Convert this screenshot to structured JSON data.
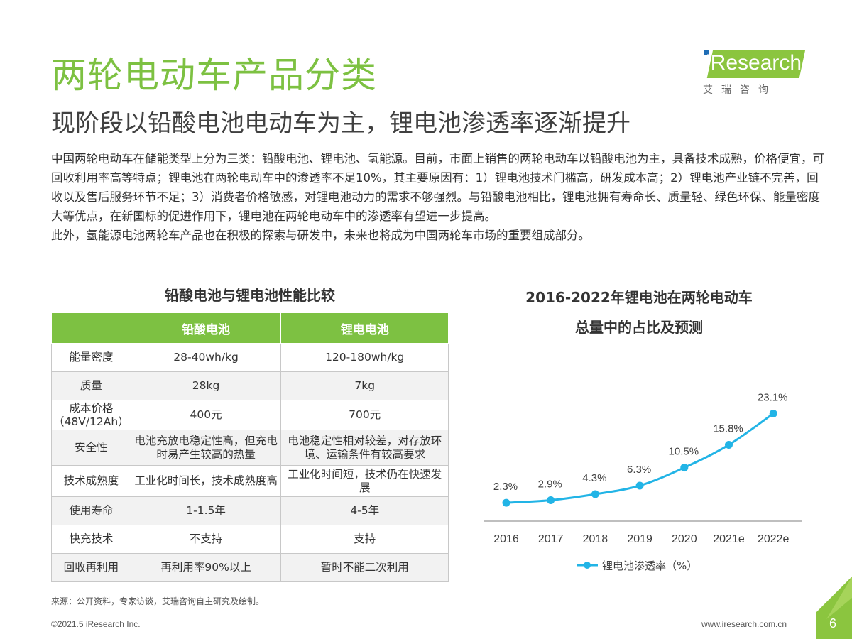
{
  "title": "两轮电动车产品分类",
  "subtitle": "现阶段以铅酸电池电动车为主，锂电池渗透率逐渐提升",
  "intro": [
    "中国两轮电动车在储能类型上分为三类：铅酸电池、锂电池、氢能源。目前，市面上销售的两轮电动车以铅酸电池为主，具备技术成熟，价格便宜，可回收利用率高等特点；锂电池在两轮电动车中的渗透率不足10%，其主要原因有：1）锂电池技术门槛高，研发成本高；2）锂电池产业链不完善，回收以及售后服务环节不足；3）消费者价格敏感，对锂电池动力的需求不够强烈。与铅酸电池相比，锂电池拥有寿命长、质量轻、绿色环保、能量密度大等优点，在新国标的促进作用下，锂电池在两轮电动车中的渗透率有望进一步提高。",
    "此外，氢能源电池两轮车产品也在积极的探索与研发中，未来也将成为中国两轮车市场的重要组成部分。"
  ],
  "logo": {
    "word": "iResearch",
    "cn": "艾瑞咨询",
    "color": "#8bc53f"
  },
  "table": {
    "title": "铅酸电池与锂电池性能比较",
    "headers": [
      "",
      "铅酸电池",
      "锂电电池"
    ],
    "rows": [
      [
        "能量密度",
        "28-40wh/kg",
        "120-180wh/kg"
      ],
      [
        "质量",
        "28kg",
        "7kg"
      ],
      [
        "成本价格（48V/12Ah）",
        "400元",
        "700元"
      ],
      [
        "安全性",
        "电池充放电稳定性高，但充电时易产生较高的热量",
        "电池稳定性相对较差，对存放环境、运输条件有较高要求"
      ],
      [
        "技术成熟度",
        "工业化时间长，技术成熟度高",
        "工业化时间短，技术仍在快速发展"
      ],
      [
        "使用寿命",
        "1-1.5年",
        "4-5年"
      ],
      [
        "快充技术",
        "不支持",
        "支持"
      ],
      [
        "回收再利用",
        "再利用率90%以上",
        "暂时不能二次利用"
      ]
    ]
  },
  "chart_data": {
    "type": "line",
    "title_line1": "2016-2022年锂电池在两轮电动车",
    "title_line2": "总量中的占比及预测",
    "categories": [
      "2016",
      "2017",
      "2018",
      "2019",
      "2020",
      "2021e",
      "2022e"
    ],
    "series": [
      {
        "name": "锂电池渗透率（%）",
        "values": [
          2.3,
          2.9,
          4.3,
          6.3,
          10.5,
          15.8,
          23.1
        ],
        "color": "#22b4e6"
      }
    ],
    "data_labels": [
      "2.3%",
      "2.9%",
      "4.3%",
      "6.3%",
      "10.5%",
      "15.8%",
      "23.1%"
    ],
    "ylim": [
      0,
      24
    ],
    "grid": false,
    "legend": "bottom"
  },
  "source": "来源：公开资料，专家访谈，艾瑞咨询自主研究及绘制。",
  "footer": {
    "copyright": "©2021.5 iResearch Inc.",
    "url": "www.iresearch.com.cn",
    "page": "6"
  },
  "colors": {
    "accent": "#7dc142",
    "line": "#22b4e6"
  }
}
